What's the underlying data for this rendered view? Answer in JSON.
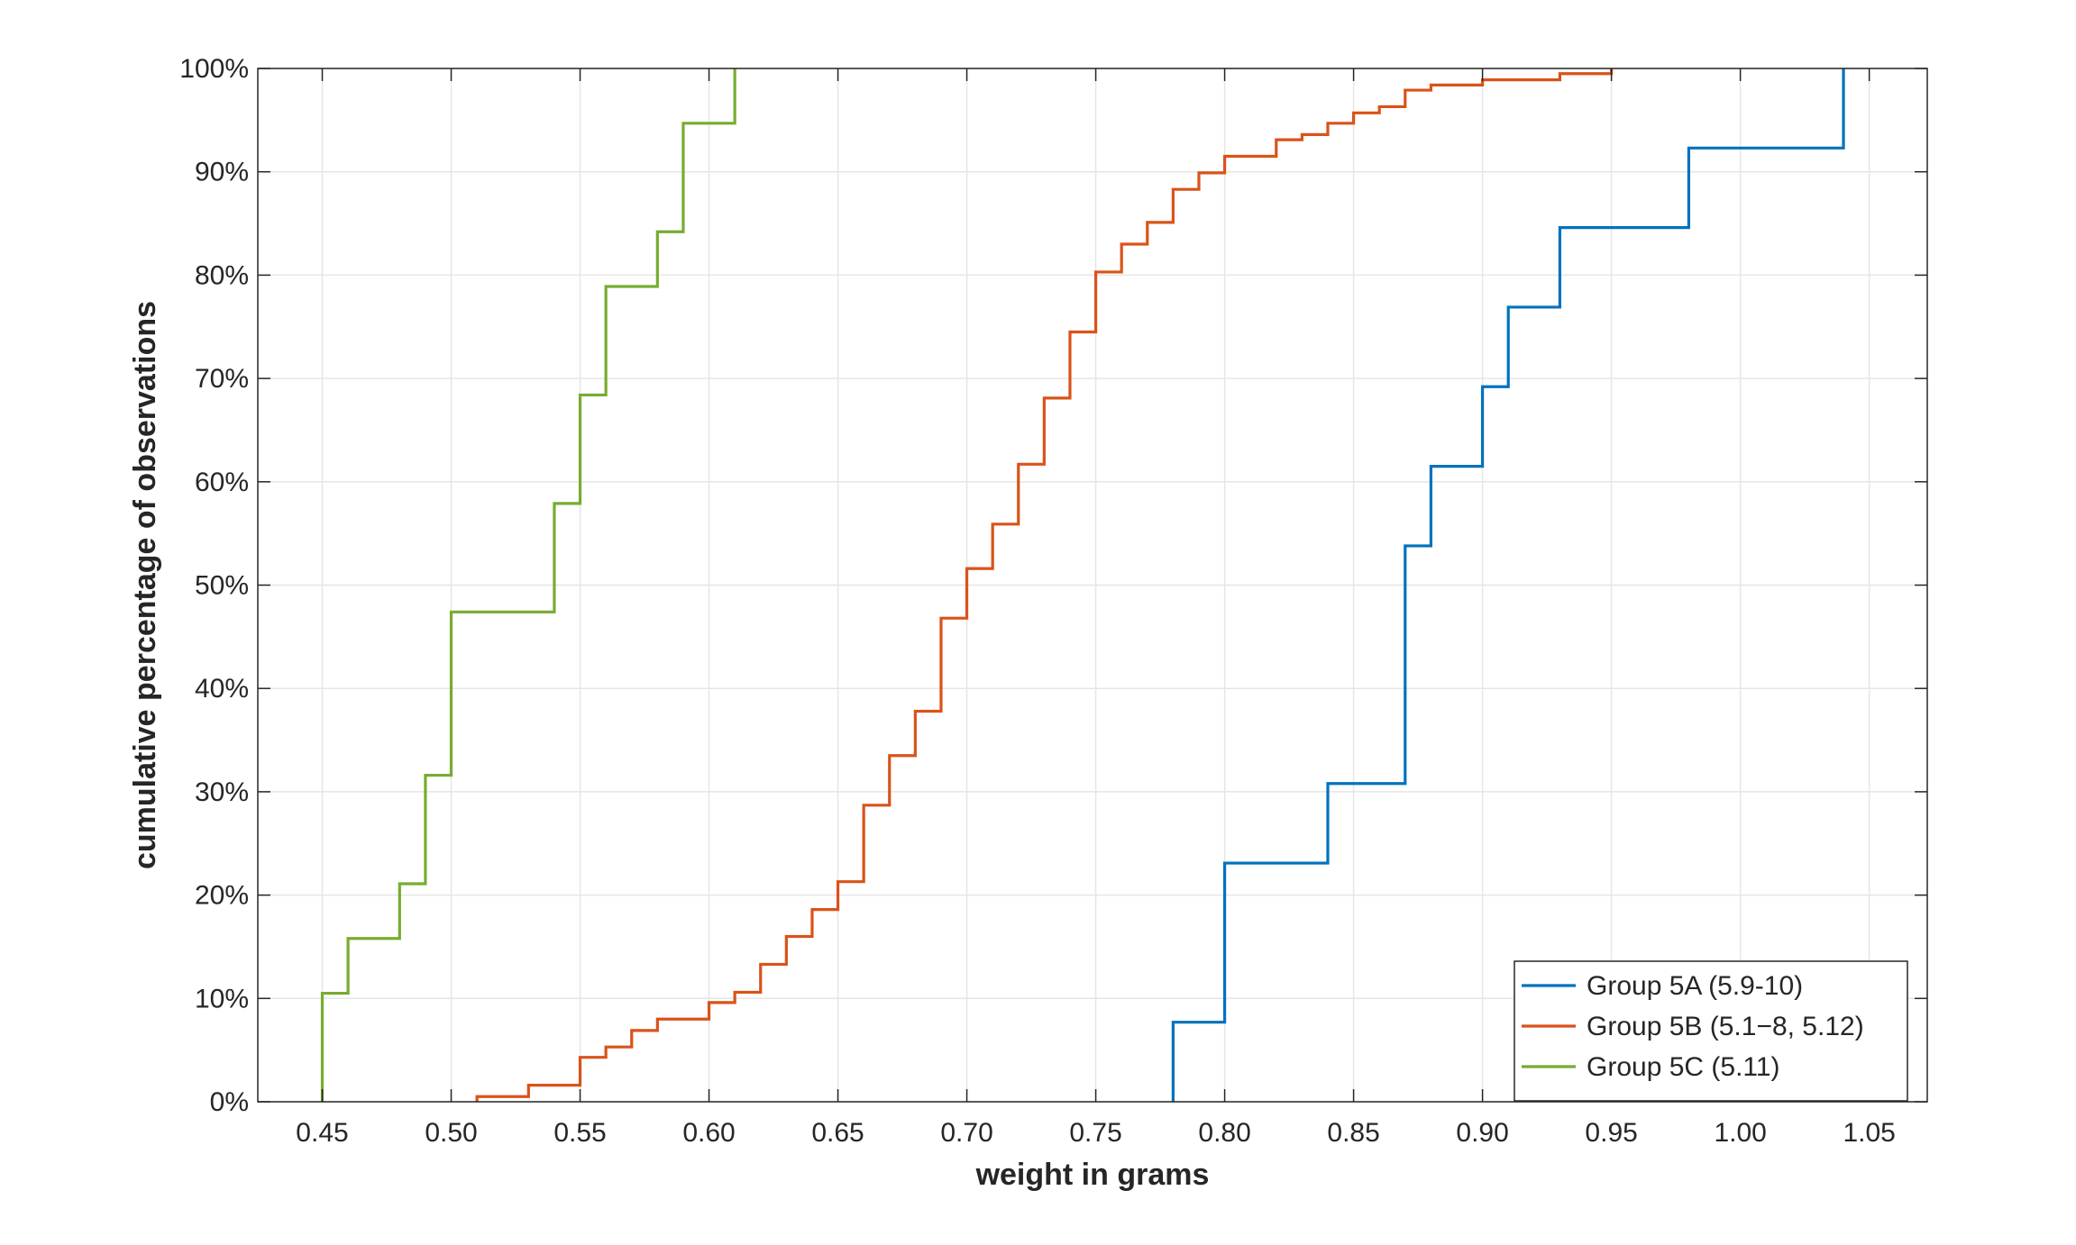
{
  "chart_data": {
    "type": "line",
    "subtype": "empirical-cumulative-step",
    "xlabel": "weight in grams",
    "ylabel": "cumulative percentage of observations",
    "xlim": [
      0.425,
      1.0725
    ],
    "ylim": [
      0,
      100
    ],
    "x_ticks": [
      0.45,
      0.5,
      0.55,
      0.6,
      0.65,
      0.7,
      0.75,
      0.8,
      0.85,
      0.9,
      0.95,
      1.0,
      1.05
    ],
    "x_tick_labels": [
      "0.45",
      "0.50",
      "0.55",
      "0.60",
      "0.65",
      "0.70",
      "0.75",
      "0.80",
      "0.85",
      "0.90",
      "0.95",
      "1.00",
      "1.05"
    ],
    "y_ticks": [
      0,
      10,
      20,
      30,
      40,
      50,
      60,
      70,
      80,
      90,
      100
    ],
    "y_tick_labels": [
      "0%",
      "10%",
      "20%",
      "30%",
      "40%",
      "50%",
      "60%",
      "70%",
      "80%",
      "90%",
      "100%"
    ],
    "grid": true,
    "legend_position": "bottom-right",
    "series": [
      {
        "name": "Group 5A (5.9-10)",
        "color": "#0072BD",
        "x": [
          0.78,
          0.8,
          0.84,
          0.87,
          0.88,
          0.9,
          0.91,
          0.93,
          0.98,
          1.04
        ],
        "y": [
          7.7,
          23.1,
          30.8,
          53.8,
          61.5,
          69.2,
          76.9,
          84.6,
          92.3,
          100
        ]
      },
      {
        "name": "Group 5B (5.1−8, 5.12)",
        "color": "#D95319",
        "x": [
          0.51,
          0.53,
          0.55,
          0.56,
          0.57,
          0.58,
          0.6,
          0.61,
          0.62,
          0.63,
          0.64,
          0.65,
          0.66,
          0.67,
          0.68,
          0.69,
          0.7,
          0.71,
          0.72,
          0.73,
          0.74,
          0.75,
          0.76,
          0.77,
          0.78,
          0.79,
          0.8,
          0.82,
          0.83,
          0.84,
          0.85,
          0.86,
          0.87,
          0.88,
          0.9,
          0.93,
          0.95
        ],
        "y": [
          0.5,
          1.6,
          4.3,
          5.3,
          6.9,
          8.0,
          9.6,
          10.6,
          13.3,
          16.0,
          18.6,
          21.3,
          28.7,
          33.5,
          37.8,
          46.8,
          51.6,
          55.9,
          61.7,
          68.1,
          74.5,
          80.3,
          83.0,
          85.1,
          88.3,
          89.9,
          91.5,
          93.1,
          93.6,
          94.7,
          95.7,
          96.3,
          97.9,
          98.4,
          98.9,
          99.5,
          100
        ]
      },
      {
        "name": "Group 5C (5.11)",
        "color": "#77AC30",
        "x": [
          0.45,
          0.46,
          0.48,
          0.49,
          0.5,
          0.54,
          0.55,
          0.56,
          0.58,
          0.59,
          0.61
        ],
        "y": [
          10.5,
          15.8,
          21.1,
          31.6,
          47.4,
          57.9,
          68.4,
          78.9,
          84.2,
          94.7,
          100
        ]
      }
    ]
  }
}
